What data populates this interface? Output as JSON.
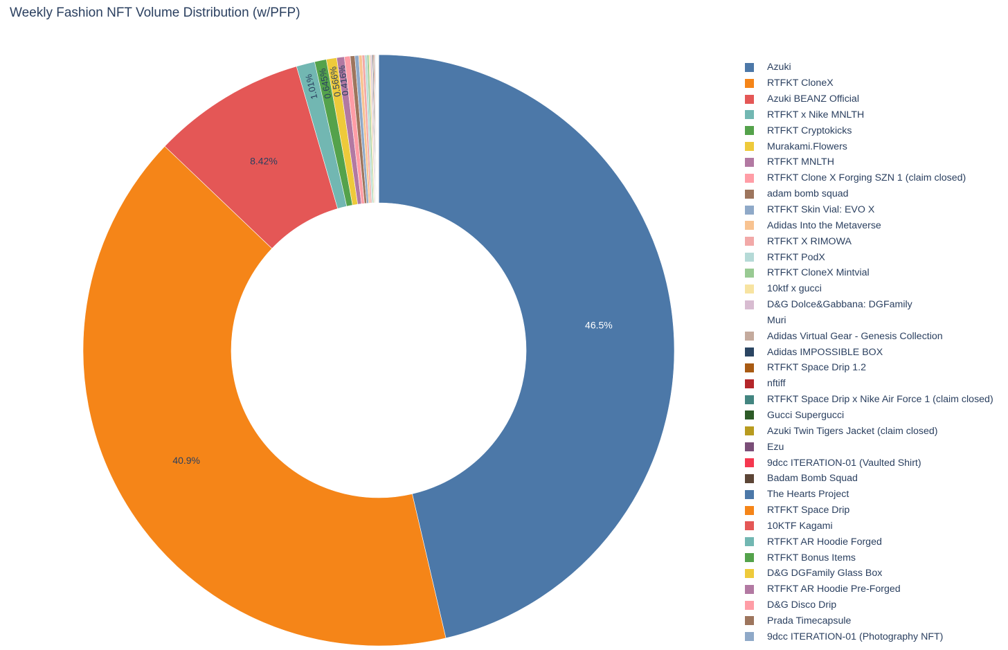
{
  "chart_data": {
    "type": "pie",
    "hole": true,
    "title": "Weekly Fashion NFT Volume Distribution (w/PFP)",
    "categories": [
      "Azuki",
      "RTFKT CloneX",
      "Azuki BEANZ Official",
      "RTFKT x Nike MNLTH",
      "RTFKT Cryptokicks",
      "Murakami.Flowers",
      "RTFKT MNLTH",
      "RTFKT Clone X Forging SZN 1 (claim closed)",
      "adam bomb squad",
      "RTFKT Skin Vial: EVO X",
      "Adidas Into the Metaverse",
      "RTFKT X RIMOWA",
      "RTFKT PodX",
      "RTFKT CloneX Mintvial",
      "10ktf x gucci",
      "D&G Dolce&Gabbana: DGFamily",
      "Muri",
      "Adidas Virtual Gear - Genesis Collection",
      "Adidas IMPOSSIBLE BOX",
      "RTFKT Space Drip 1.2",
      "nftiff",
      "RTFKT Space Drip x Nike Air Force 1 (claim closed)",
      "Gucci Supergucci",
      "Azuki Twin Tigers Jacket (claim closed)",
      "Ezu",
      "9dcc ITERATION-01 (Vaulted Shirt)",
      "Badam Bomb Squad",
      "The Hearts Project",
      "RTFKT Space Drip",
      "10KTF Kagami",
      "RTFKT AR Hoodie Forged",
      "RTFKT Bonus Items",
      "D&G DGFamily Glass Box",
      "RTFKT AR Hoodie Pre-Forged",
      "D&G Disco Drip",
      "Prada Timecapsule",
      "9dcc ITERATION-01 (Photography NFT)"
    ],
    "values": [
      46.5,
      40.9,
      8.42,
      1.01,
      0.645,
      0.566,
      0.416,
      0.32,
      0.25,
      0.21,
      0.18,
      0.15,
      0.12,
      0.1,
      0.08,
      0.07,
      0.0,
      0.05,
      0.045,
      0.04,
      0.035,
      0.03,
      0.027,
      0.024,
      0.02,
      0.018,
      0.016,
      0.014,
      0.012,
      0.01,
      0.009,
      0.008,
      0.007,
      0.006,
      0.005,
      0.004,
      0.003
    ],
    "colors": [
      "#4C78A8",
      "#F58518",
      "#E45756",
      "#72B7B2",
      "#54A24B",
      "#EECA3B",
      "#B279A2",
      "#FF9DA6",
      "#9D755D",
      "#8FA9C8",
      "#F8C391",
      "#F2A9A8",
      "#B5DAD7",
      "#99CA93",
      "#F7E3A1",
      "#D8BCD1",
      "#FFFFFF",
      "#C4AA9D",
      "#2B4562",
      "#A85A12",
      "#B4262A",
      "#438580",
      "#2D5A27",
      "#B89B1F",
      "#7A4E78",
      "#F5384F",
      "#5C4536",
      "#4C78A8",
      "#F58518",
      "#E45756",
      "#72B7B2",
      "#54A24B",
      "#EECA3B",
      "#B279A2",
      "#FF9DA6",
      "#9D755D",
      "#8FA9C8"
    ],
    "labels_shown": {
      "0": "46.5%",
      "1": "40.9%",
      "2": "8.42%",
      "3": "1.01%",
      "4": "0.645%",
      "5": "0.566%",
      "6": "0.416%"
    },
    "legend_position": "right"
  }
}
